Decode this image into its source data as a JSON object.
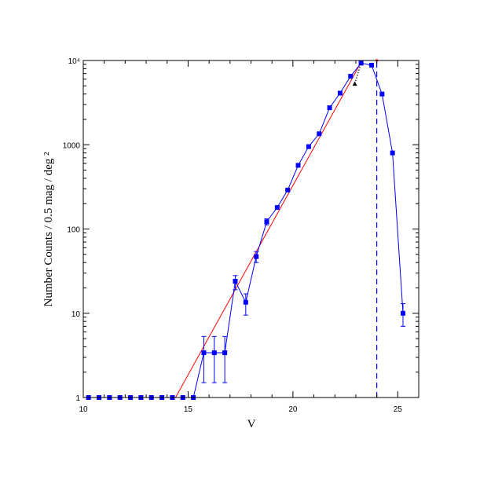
{
  "chart_data": {
    "type": "line",
    "xlabel": "V",
    "ylabel": "Number Counts / 0.5 mag / deg ²",
    "xlim": [
      10,
      26
    ],
    "ylim": [
      1,
      10000
    ],
    "yscale": "log",
    "x_ticks": [
      10,
      15,
      20,
      25
    ],
    "x_tick_labels": [
      "10",
      "15",
      "20",
      "25"
    ],
    "y_ticks": [
      1,
      10,
      100,
      1000,
      10000
    ],
    "y_tick_labels": [
      "1",
      "10",
      "100",
      "1000",
      "10⁴"
    ],
    "grid": false,
    "colors": {
      "counts": "#0000ff",
      "fit": "#ff0000",
      "limit": "#0000ff",
      "extra": "#000000"
    },
    "series": [
      {
        "style": "line-with-square-markers-and-errorbars",
        "color": "#0000ff",
        "points": [
          {
            "x": 10.25,
            "y": 1
          },
          {
            "x": 10.75,
            "y": 1
          },
          {
            "x": 11.25,
            "y": 1
          },
          {
            "x": 11.75,
            "y": 1
          },
          {
            "x": 12.25,
            "y": 1
          },
          {
            "x": 12.75,
            "y": 1
          },
          {
            "x": 13.25,
            "y": 1
          },
          {
            "x": 13.75,
            "y": 1
          },
          {
            "x": 14.25,
            "y": 1
          },
          {
            "x": 14.75,
            "y": 1
          },
          {
            "x": 15.25,
            "y": 1
          },
          {
            "x": 15.75,
            "y": 3.4,
            "ylo": 1.5,
            "yhi": 5.3
          },
          {
            "x": 16.25,
            "y": 3.4,
            "ylo": 1.5,
            "yhi": 5.3
          },
          {
            "x": 16.75,
            "y": 3.4,
            "ylo": 1.5,
            "yhi": 5.3
          },
          {
            "x": 17.25,
            "y": 24,
            "ylo": 19,
            "yhi": 28
          },
          {
            "x": 17.75,
            "y": 13.5,
            "ylo": 9.5,
            "yhi": 17
          },
          {
            "x": 18.25,
            "y": 47,
            "ylo": 40,
            "yhi": 54
          },
          {
            "x": 18.75,
            "y": 122,
            "ylo": 112,
            "yhi": 132
          },
          {
            "x": 19.25,
            "y": 180
          },
          {
            "x": 19.75,
            "y": 290
          },
          {
            "x": 20.25,
            "y": 570
          },
          {
            "x": 20.75,
            "y": 950
          },
          {
            "x": 21.25,
            "y": 1350
          },
          {
            "x": 21.75,
            "y": 2750
          },
          {
            "x": 22.25,
            "y": 4100
          },
          {
            "x": 22.75,
            "y": 6500
          },
          {
            "x": 23.25,
            "y": 9300
          },
          {
            "x": 23.75,
            "y": 8800
          },
          {
            "x": 24.25,
            "y": 4000
          },
          {
            "x": 24.75,
            "y": 800
          },
          {
            "x": 25.25,
            "y": 10,
            "ylo": 7,
            "yhi": 13
          }
        ]
      },
      {
        "style": "line",
        "color": "#ff0000",
        "points": [
          {
            "x": 14.4,
            "y": 1
          },
          {
            "x": 23.3,
            "y": 10000
          },
          {
            "x": 24.0,
            "y": 10000
          }
        ]
      }
    ],
    "vertical_lines": [
      {
        "x": 24.0,
        "style": "dashed",
        "color": "#0000ff",
        "from": 1,
        "to": 10000
      }
    ],
    "annotations": [
      {
        "type": "triangle",
        "color": "#000000",
        "x": 22.95,
        "y": 5300
      },
      {
        "type": "dotted-line",
        "color": "#000000",
        "from": {
          "x": 22.95,
          "y": 5300
        },
        "to": {
          "x": 23.25,
          "y": 9300
        }
      }
    ]
  }
}
